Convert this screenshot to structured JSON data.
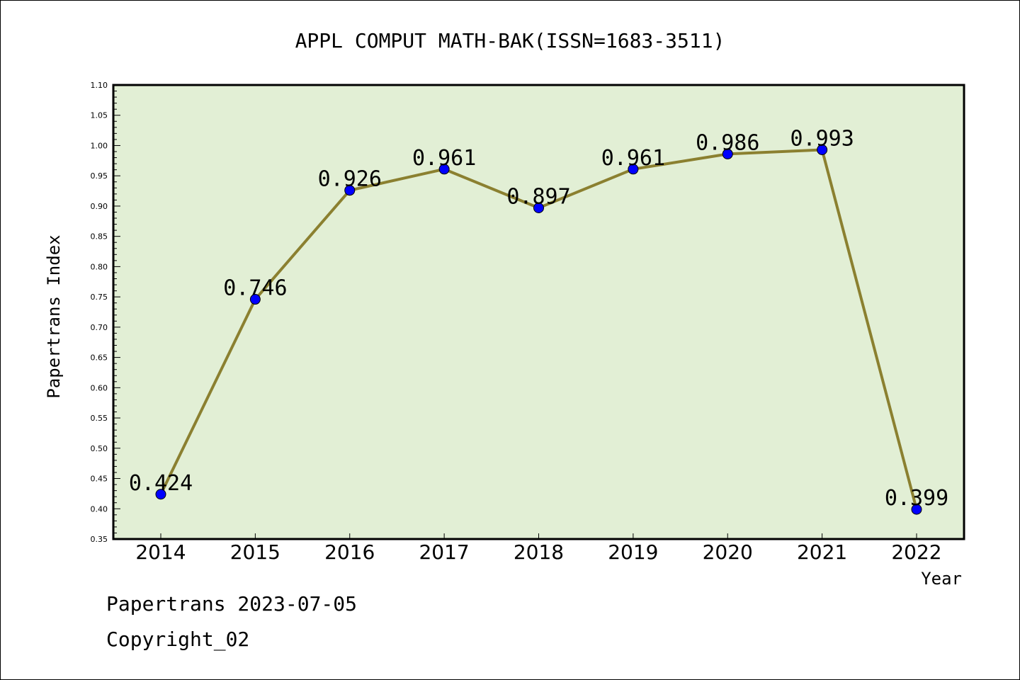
{
  "chart_data": {
    "type": "line",
    "title": "APPL COMPUT MATH-BAK(ISSN=1683-3511)",
    "xlabel": "Year",
    "ylabel": "Papertrans Index",
    "categories": [
      "2014",
      "2015",
      "2016",
      "2017",
      "2018",
      "2019",
      "2020",
      "2021",
      "2022"
    ],
    "values": [
      0.424,
      0.746,
      0.926,
      0.961,
      0.897,
      0.961,
      0.986,
      0.993,
      0.399
    ],
    "value_labels": [
      "0.424",
      "0.746",
      "0.926",
      "0.961",
      "0.897",
      "0.961",
      "0.986",
      "0.993",
      "0.399"
    ],
    "ylim": [
      0.35,
      1.1
    ],
    "yticks": [
      "0.35",
      "0.40",
      "0.45",
      "0.50",
      "0.55",
      "0.60",
      "0.65",
      "0.70",
      "0.75",
      "0.80",
      "0.85",
      "0.90",
      "0.95",
      "1.00",
      "1.05",
      "1.10"
    ],
    "grid": false,
    "colors": {
      "plot_bg": "#e2efd5",
      "line": "#8b8030",
      "marker": "#0000ff"
    }
  },
  "footer": {
    "line1": "Papertrans 2023-07-05",
    "line2": "Copyright_02"
  }
}
